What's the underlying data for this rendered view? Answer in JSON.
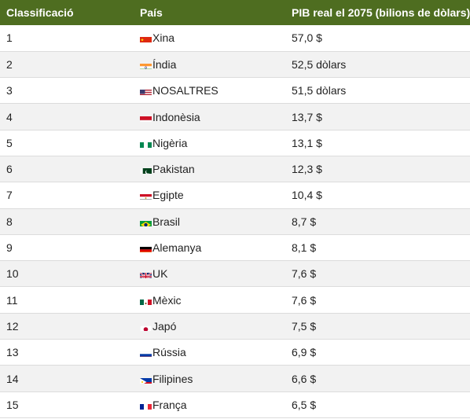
{
  "table": {
    "headers": [
      "Classificació",
      "País",
      "PIB real el 2075 (bilions de dòlars)"
    ],
    "rows": [
      {
        "rank": "1",
        "country": "Xina",
        "flag": "china-flag-icon",
        "gdp": "57,0 $"
      },
      {
        "rank": "2",
        "country": "Índia",
        "flag": "india-flag-icon",
        "gdp": "52,5 dòlars"
      },
      {
        "rank": "3",
        "country": "NOSALTRES",
        "flag": "usa-flag-icon",
        "gdp": "51,5 dòlars"
      },
      {
        "rank": "4",
        "country": "Indonèsia",
        "flag": "indonesia-flag-icon",
        "gdp": "13,7 $"
      },
      {
        "rank": "5",
        "country": "Nigèria",
        "flag": "nigeria-flag-icon",
        "gdp": "13,1 $"
      },
      {
        "rank": "6",
        "country": "Pakistan",
        "flag": "pakistan-flag-icon",
        "gdp": "12,3 $"
      },
      {
        "rank": "7",
        "country": "Egipte",
        "flag": "egypt-flag-icon",
        "gdp": "10,4 $"
      },
      {
        "rank": "8",
        "country": "Brasil",
        "flag": "brazil-flag-icon",
        "gdp": "8,7 $"
      },
      {
        "rank": "9",
        "country": "Alemanya",
        "flag": "germany-flag-icon",
        "gdp": "8,1 $"
      },
      {
        "rank": "10",
        "country": "UK",
        "flag": "uk-flag-icon",
        "gdp": "7,6 $"
      },
      {
        "rank": "11",
        "country": "Mèxic",
        "flag": "mexico-flag-icon",
        "gdp": "7,6 $"
      },
      {
        "rank": "12",
        "country": "Japó",
        "flag": "japan-flag-icon",
        "gdp": "7,5 $"
      },
      {
        "rank": "13",
        "country": "Rússia",
        "flag": "russia-flag-icon",
        "gdp": "6,9 $"
      },
      {
        "rank": "14",
        "country": "Filipines",
        "flag": "philippines-flag-icon",
        "gdp": "6,6 $"
      },
      {
        "rank": "15",
        "country": "França",
        "flag": "france-flag-icon",
        "gdp": "6,5 $"
      }
    ]
  },
  "colors": {
    "header_bg": "#4e6d20",
    "header_text": "#ffffff",
    "row_alt_bg": "#f2f2f2",
    "row_border": "#dcdcdc"
  }
}
